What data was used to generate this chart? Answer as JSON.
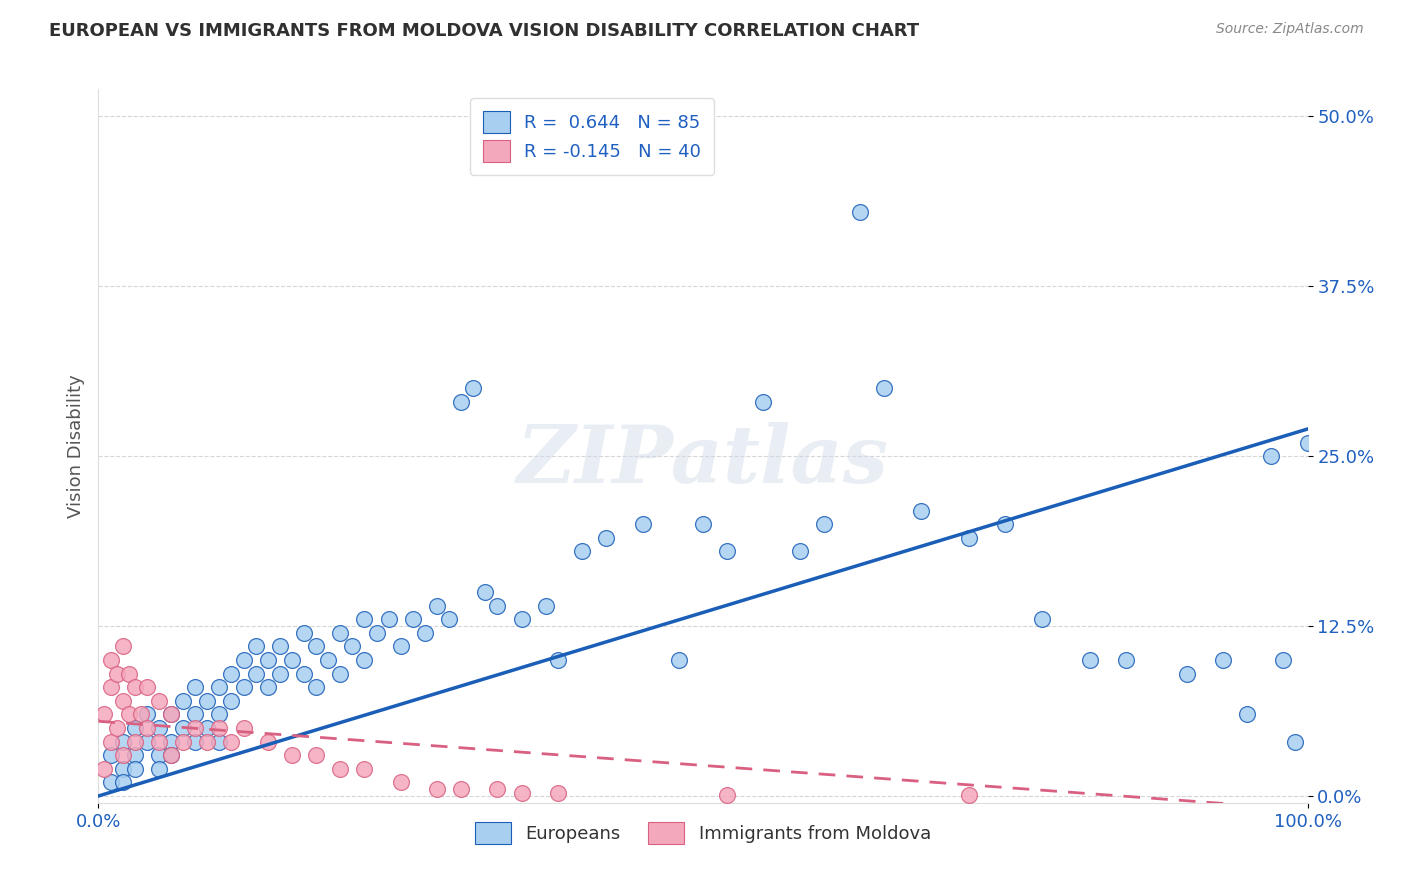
{
  "title": "EUROPEAN VS IMMIGRANTS FROM MOLDOVA VISION DISABILITY CORRELATION CHART",
  "source": "Source: ZipAtlas.com",
  "ylabel": "Vision Disability",
  "xlim": [
    0,
    1.0
  ],
  "ylim": [
    -0.005,
    0.52
  ],
  "yticks": [
    0.0,
    0.125,
    0.25,
    0.375,
    0.5
  ],
  "ytick_labels": [
    "0.0%",
    "12.5%",
    "25.0%",
    "37.5%",
    "50.0%"
  ],
  "xtick_labels": [
    "0.0%",
    "100.0%"
  ],
  "watermark": "ZIPatlas",
  "blue_color": "#A8CFF0",
  "pink_color": "#F4A8BC",
  "line_blue": "#1A5EB8",
  "line_pink": "#D96080",
  "background_color": "#FFFFFF",
  "grid_color": "#CCCCCC",
  "title_color": "#303030",
  "axis_label_color": "#2060C0",
  "blue_dots_x": [
    0.01,
    0.01,
    0.02,
    0.02,
    0.02,
    0.03,
    0.03,
    0.03,
    0.04,
    0.04,
    0.05,
    0.05,
    0.05,
    0.06,
    0.06,
    0.06,
    0.07,
    0.07,
    0.08,
    0.08,
    0.08,
    0.09,
    0.09,
    0.1,
    0.1,
    0.1,
    0.11,
    0.11,
    0.12,
    0.12,
    0.13,
    0.13,
    0.14,
    0.14,
    0.15,
    0.15,
    0.16,
    0.17,
    0.17,
    0.18,
    0.18,
    0.19,
    0.2,
    0.2,
    0.21,
    0.22,
    0.22,
    0.23,
    0.24,
    0.25,
    0.26,
    0.27,
    0.28,
    0.29,
    0.3,
    0.31,
    0.32,
    0.33,
    0.35,
    0.37,
    0.38,
    0.4,
    0.42,
    0.45,
    0.48,
    0.5,
    0.52,
    0.55,
    0.58,
    0.6,
    0.63,
    0.65,
    0.68,
    0.72,
    0.75,
    0.78,
    0.82,
    0.85,
    0.9,
    0.93,
    0.95,
    0.98,
    1.0,
    0.97,
    0.99
  ],
  "blue_dots_y": [
    0.01,
    0.03,
    0.02,
    0.04,
    0.01,
    0.03,
    0.05,
    0.02,
    0.04,
    0.06,
    0.03,
    0.05,
    0.02,
    0.04,
    0.06,
    0.03,
    0.05,
    0.07,
    0.06,
    0.08,
    0.04,
    0.07,
    0.05,
    0.08,
    0.06,
    0.04,
    0.09,
    0.07,
    0.1,
    0.08,
    0.09,
    0.11,
    0.1,
    0.08,
    0.09,
    0.11,
    0.1,
    0.12,
    0.09,
    0.11,
    0.08,
    0.1,
    0.12,
    0.09,
    0.11,
    0.13,
    0.1,
    0.12,
    0.13,
    0.11,
    0.13,
    0.12,
    0.14,
    0.13,
    0.29,
    0.3,
    0.15,
    0.14,
    0.13,
    0.14,
    0.1,
    0.18,
    0.19,
    0.2,
    0.1,
    0.2,
    0.18,
    0.29,
    0.18,
    0.2,
    0.43,
    0.3,
    0.21,
    0.19,
    0.2,
    0.13,
    0.1,
    0.1,
    0.09,
    0.1,
    0.06,
    0.1,
    0.26,
    0.25,
    0.04
  ],
  "pink_dots_x": [
    0.005,
    0.005,
    0.01,
    0.01,
    0.01,
    0.015,
    0.015,
    0.02,
    0.02,
    0.02,
    0.025,
    0.025,
    0.03,
    0.03,
    0.035,
    0.04,
    0.04,
    0.05,
    0.05,
    0.06,
    0.06,
    0.07,
    0.08,
    0.09,
    0.1,
    0.11,
    0.12,
    0.14,
    0.16,
    0.18,
    0.2,
    0.22,
    0.25,
    0.28,
    0.3,
    0.33,
    0.35,
    0.38,
    0.52,
    0.72
  ],
  "pink_dots_y": [
    0.02,
    0.06,
    0.04,
    0.08,
    0.1,
    0.05,
    0.09,
    0.03,
    0.07,
    0.11,
    0.06,
    0.09,
    0.04,
    0.08,
    0.06,
    0.05,
    0.08,
    0.04,
    0.07,
    0.03,
    0.06,
    0.04,
    0.05,
    0.04,
    0.05,
    0.04,
    0.05,
    0.04,
    0.03,
    0.03,
    0.02,
    0.02,
    0.01,
    0.005,
    0.005,
    0.005,
    0.002,
    0.002,
    0.001,
    0.001
  ],
  "blue_line_x0": 0.0,
  "blue_line_y0": 0.0,
  "blue_line_x1": 1.0,
  "blue_line_y1": 0.27,
  "pink_line_x0": 0.0,
  "pink_line_y0": 0.055,
  "pink_line_x1": 1.0,
  "pink_line_y1": -0.01
}
